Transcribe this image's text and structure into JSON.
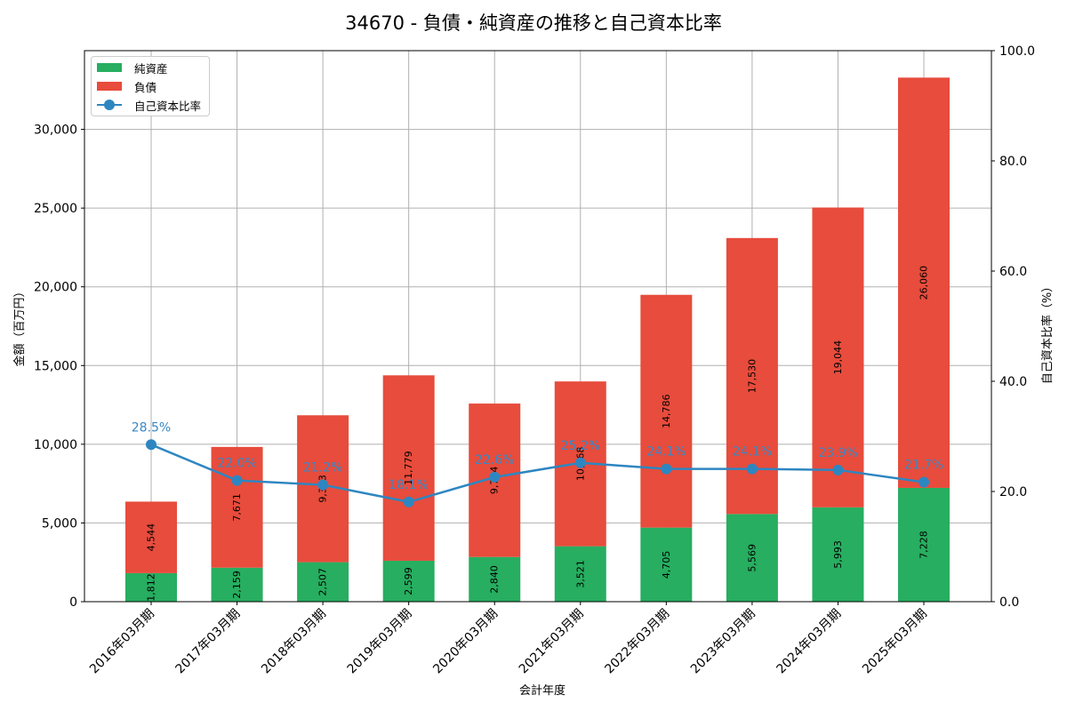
{
  "title": "34670 - 負債・純資産の推移と自己資本比率",
  "legend": {
    "net_assets": "純資産",
    "liabilities": "負債",
    "equity_ratio": "自己資本比率"
  },
  "axes": {
    "xlabel": "会計年度",
    "ylabel_left": "金額（百万円）",
    "ylabel_right": "自己資本比率（%）",
    "left_ticks": [
      "0",
      "5,000",
      "10,000",
      "15,000",
      "20,000",
      "25,000",
      "30,000"
    ],
    "right_ticks": [
      "0.0",
      "20.0",
      "40.0",
      "60.0",
      "80.0",
      "100.0"
    ]
  },
  "colors": {
    "net_assets": "#27ae60",
    "liabilities": "#e74c3c",
    "equity_ratio": "#2e86c1"
  },
  "chart_data": {
    "type": "bar",
    "stacked": true,
    "title": "34670 - 負債・純資産の推移と自己資本比率",
    "xlabel": "会計年度",
    "ylabel": "金額（百万円）",
    "y2label": "自己資本比率（%）",
    "ylim": [
      0,
      35000
    ],
    "y2lim": [
      0,
      100
    ],
    "grid": true,
    "legend_position": "upper left",
    "categories": [
      "2016年03月期",
      "2017年03月期",
      "2018年03月期",
      "2019年03月期",
      "2020年03月期",
      "2021年03月期",
      "2022年03月期",
      "2023年03月期",
      "2024年03月期",
      "2025年03月期"
    ],
    "series": [
      {
        "name": "純資産",
        "type": "bar",
        "axis": "left",
        "values": [
          1812,
          2159,
          2507,
          2599,
          2840,
          3521,
          4705,
          5569,
          5993,
          7228
        ],
        "labels": [
          "1,812",
          "2,159",
          "2,507",
          "2,599",
          "2,840",
          "3,521",
          "4,705",
          "5,569",
          "5,993",
          "7,228"
        ]
      },
      {
        "name": "負債",
        "type": "bar",
        "axis": "left",
        "values": [
          4544,
          7671,
          9333,
          11779,
          9744,
          10468,
          14786,
          17530,
          19044,
          26060
        ],
        "labels": [
          "4,544",
          "7,671",
          "9,333",
          "11,779",
          "9,744",
          "10,468",
          "14,786",
          "17,530",
          "19,044",
          "26,060"
        ]
      },
      {
        "name": "自己資本比率",
        "type": "line",
        "axis": "right",
        "values": [
          28.5,
          22.0,
          21.2,
          18.1,
          22.6,
          25.2,
          24.1,
          24.1,
          23.9,
          21.7
        ],
        "labels": [
          "28.5%",
          "22.0%",
          "21.2%",
          "18.1%",
          "22.6%",
          "25.2%",
          "24.1%",
          "24.1%",
          "23.9%",
          "21.7%"
        ]
      }
    ]
  }
}
